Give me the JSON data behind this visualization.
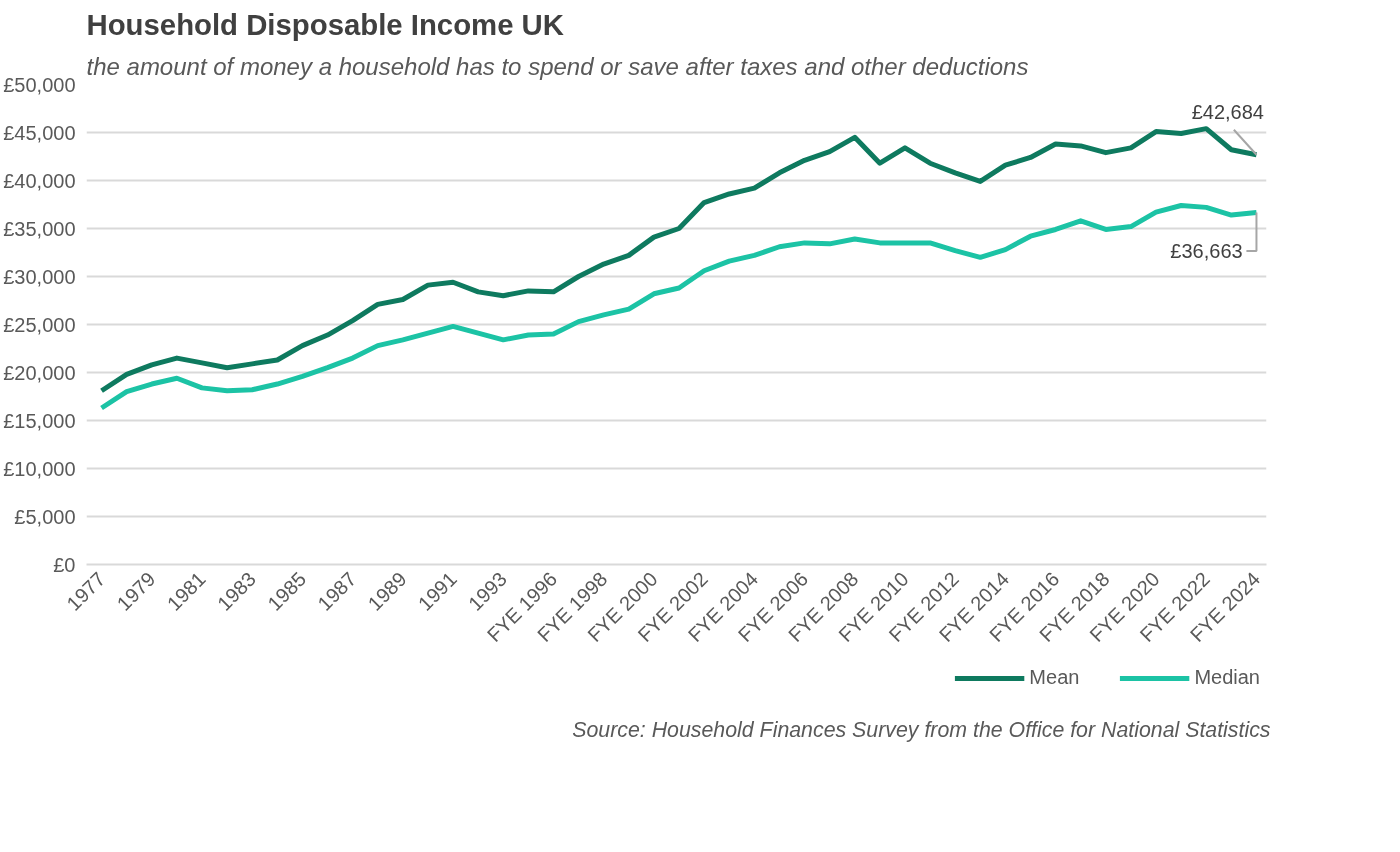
{
  "chart_data": {
    "type": "line",
    "title": "Household Disposable Income UK",
    "subtitle": "the amount of money a household has to spend or save after taxes and other deductions",
    "categories": [
      "1977",
      null,
      "1979",
      null,
      "1981",
      null,
      "1983",
      null,
      "1985",
      null,
      "1987",
      null,
      "1989",
      null,
      "1991",
      null,
      "1993",
      null,
      "FYE 1996",
      null,
      "FYE 1998",
      null,
      "FYE 2000",
      null,
      "FYE 2002",
      null,
      "FYE 2004",
      null,
      "FYE 2006",
      null,
      "FYE 2008",
      null,
      "FYE 2010",
      null,
      "FYE 2012",
      null,
      "FYE 2014",
      null,
      "FYE 2016",
      null,
      "FYE 2018",
      null,
      "FYE 2020",
      null,
      "FYE 2022",
      null,
      "FYE 2024"
    ],
    "series": [
      {
        "name": "Mean",
        "color": "#0e7a5f",
        "values": [
          18100,
          19800,
          20800,
          21500,
          21000,
          20500,
          20900,
          21300,
          22800,
          23900,
          25400,
          27100,
          27600,
          29100,
          29400,
          28400,
          28000,
          28500,
          28400,
          30000,
          31300,
          32200,
          34100,
          35000,
          37700,
          38600,
          39200,
          40800,
          42100,
          43000,
          44500,
          41800,
          43400,
          41800,
          40800,
          39900,
          41600,
          42400,
          43800,
          43600,
          42900,
          43400,
          45100,
          44900,
          45400,
          43200,
          42684
        ]
      },
      {
        "name": "Median",
        "color": "#1cc3a5",
        "values": [
          16300,
          18000,
          18800,
          19400,
          18400,
          18100,
          18200,
          18800,
          19600,
          20500,
          21500,
          22800,
          23400,
          24100,
          24800,
          24100,
          23400,
          23900,
          24000,
          25300,
          26000,
          26600,
          28200,
          28800,
          30600,
          31600,
          32200,
          33100,
          33500,
          33400,
          33900,
          33500,
          33500,
          33500,
          32700,
          32000,
          32800,
          34200,
          34900,
          35800,
          34900,
          35200,
          36700,
          37400,
          37200,
          36400,
          36663
        ]
      }
    ],
    "ylim": [
      0,
      50000
    ],
    "yticks": [
      {
        "value": 0,
        "label": "£0"
      },
      {
        "value": 5000,
        "label": "£5,000"
      },
      {
        "value": 10000,
        "label": "£10,000"
      },
      {
        "value": 15000,
        "label": "£15,000"
      },
      {
        "value": 20000,
        "label": "£20,000"
      },
      {
        "value": 25000,
        "label": "£25,000"
      },
      {
        "value": 30000,
        "label": "£30,000"
      },
      {
        "value": 35000,
        "label": "£35,000"
      },
      {
        "value": 40000,
        "label": "£40,000"
      },
      {
        "value": 45000,
        "label": "£45,000"
      },
      {
        "value": 50000,
        "label": "£50,000"
      }
    ],
    "annotations": [
      {
        "text": "£42,684",
        "x": "FYE 2024",
        "y": 42684
      },
      {
        "text": "£36,663",
        "x": "FYE 2024",
        "y": 36663
      },
      "Source: Household Finances Survey from the Office for National Statistics"
    ],
    "grid": "y",
    "legend": "bottom right",
    "marker": "none",
    "line_style": "solid"
  }
}
